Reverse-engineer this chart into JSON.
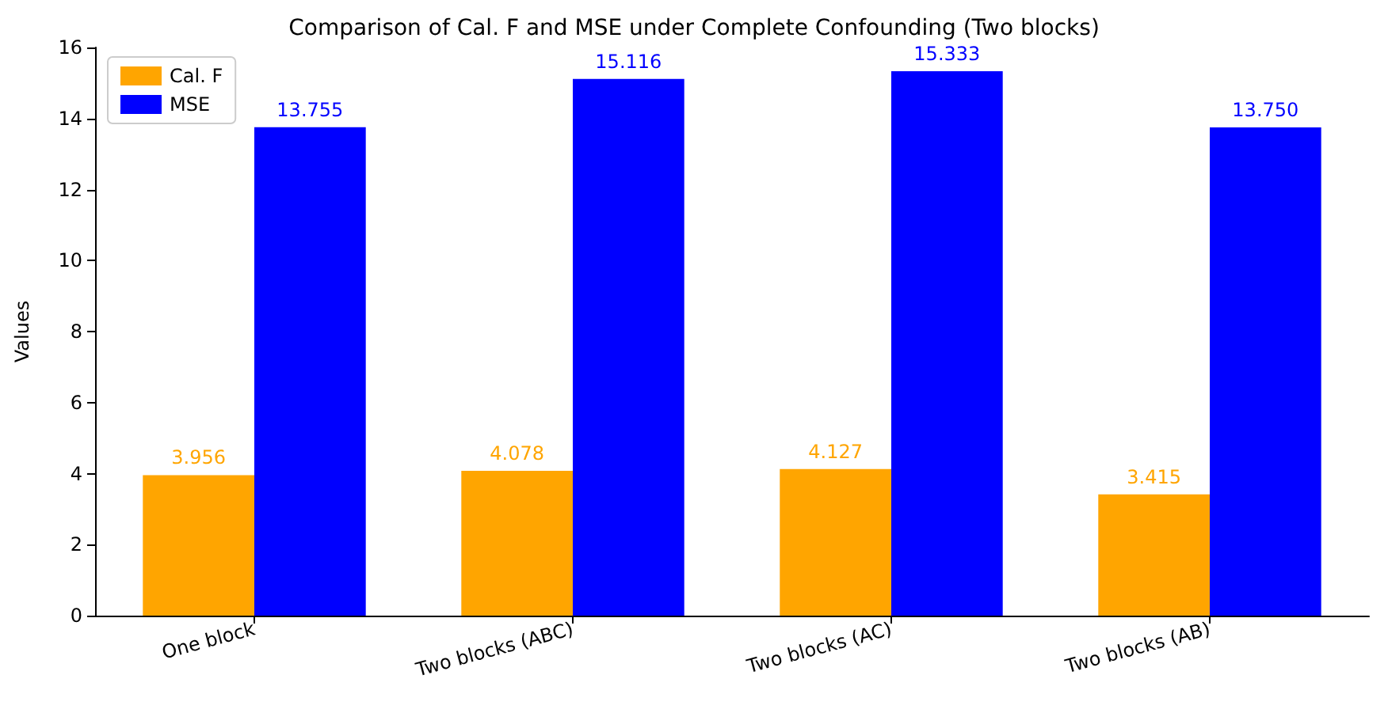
{
  "chart_data": {
    "type": "bar",
    "title": "Comparison of Cal. F and MSE under Complete Confounding (Two blocks)",
    "ylabel": "Values",
    "categories": [
      "One block",
      "Two blocks (ABC)",
      "Two blocks (AC)",
      "Two blocks (AB)"
    ],
    "series": [
      {
        "name": "Cal. F",
        "color": "#ffa500",
        "values": [
          3.956,
          4.078,
          4.127,
          3.415
        ],
        "value_labels": [
          "3.956",
          "4.078",
          "4.127",
          "3.415"
        ]
      },
      {
        "name": "MSE",
        "color": "#0000ff",
        "values": [
          13.755,
          15.116,
          15.333,
          13.75
        ],
        "value_labels": [
          "13.755",
          "15.116",
          "15.333",
          "13.750"
        ]
      }
    ],
    "ylim": [
      0,
      16
    ],
    "yticks": [
      0,
      2,
      4,
      6,
      8,
      10,
      12,
      14,
      16
    ],
    "grid": false,
    "legend": "top left"
  }
}
